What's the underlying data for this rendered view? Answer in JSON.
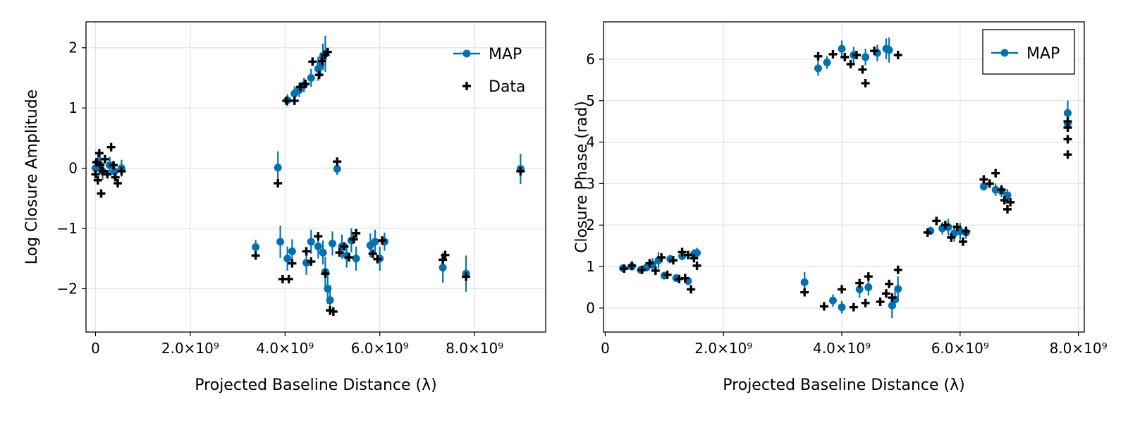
{
  "colors": {
    "map": "#0072b2",
    "data": "#000000",
    "grid": "#e3e3e3"
  },
  "chart_data": [
    {
      "type": "scatter",
      "xlabel": "Projected Baseline Distance (λ)",
      "ylabel": "Log Closure Amplitude",
      "xlim": [
        -200000000,
        9500000000
      ],
      "ylim": [
        -2.72,
        2.43
      ],
      "xticks": [
        0,
        2000000000,
        4000000000,
        6000000000,
        8000000000
      ],
      "xtick_labels": [
        "0",
        "2.0×10⁹",
        "4.0×10⁹",
        "6.0×10⁹",
        "8.0×10⁹"
      ],
      "yticks": [
        -2,
        -1,
        0,
        1,
        2
      ],
      "ytick_labels": [
        "−2",
        "−1",
        "0",
        "1",
        "2"
      ],
      "grid": true,
      "legend": {
        "placement": "top-right",
        "boxed": false,
        "entries": [
          "MAP",
          "Data"
        ]
      },
      "series": [
        {
          "name": "MAP",
          "marker": "circle-errorbar",
          "points": [
            [
              0,
              0,
              0.14
            ],
            [
              50000000,
              0.1,
              0.14
            ],
            [
              100000000,
              0.05,
              0.14
            ],
            [
              150000000,
              -0.05,
              0.14
            ],
            [
              300000000,
              0.05,
              0.14
            ],
            [
              400000000,
              -0.05,
              0.14
            ],
            [
              550000000,
              0,
              0.14
            ],
            [
              3380000000,
              -1.31,
              0.12
            ],
            [
              3850000000,
              0.01,
              0.27
            ],
            [
              3900000000,
              -1.22,
              0.27
            ],
            [
              4050000000,
              1.13,
              0.1
            ],
            [
              4050000000,
              -1.5,
              0.2
            ],
            [
              4150000000,
              -1.38,
              0.2
            ],
            [
              4200000000,
              1.24,
              0.12
            ],
            [
              4300000000,
              1.3,
              0.12
            ],
            [
              4400000000,
              1.38,
              0.12
            ],
            [
              4450000000,
              -1.57,
              0.2
            ],
            [
              4550000000,
              1.5,
              0.15
            ],
            [
              4550000000,
              -1.22,
              0.2
            ],
            [
              4700000000,
              1.65,
              0.2
            ],
            [
              4700000000,
              -1.3,
              0.2
            ],
            [
              4750000000,
              1.72,
              0.2
            ],
            [
              4800000000,
              -1.4,
              0.2
            ],
            [
              4800000000,
              1.85,
              0.22
            ],
            [
              4850000000,
              1.9,
              0.3
            ],
            [
              4850000000,
              -1.72,
              0.25
            ],
            [
              4900000000,
              -2,
              0.25
            ],
            [
              4950000000,
              -2.19,
              0.25
            ],
            [
              5000000000,
              -1.25,
              0.2
            ],
            [
              5100000000,
              -0.01,
              0.1
            ],
            [
              5200000000,
              -1.3,
              0.2
            ],
            [
              5300000000,
              -1.45,
              0.2
            ],
            [
              5400000000,
              -1.2,
              0.2
            ],
            [
              5500000000,
              -1.5,
              0.2
            ],
            [
              5800000000,
              -1.28,
              0.2
            ],
            [
              5900000000,
              -1.22,
              0.2
            ],
            [
              6000000000,
              -1.5,
              0.2
            ],
            [
              6100000000,
              -1.22,
              0.15
            ],
            [
              7330000000,
              -1.65,
              0.25
            ],
            [
              7820000000,
              -1.75,
              0.3
            ],
            [
              8970000000,
              -0.01,
              0.25
            ]
          ]
        },
        {
          "name": "Data",
          "marker": "cross",
          "points": [
            [
              0,
              -0.1
            ],
            [
              20000000,
              0.1
            ],
            [
              50000000,
              -0.2
            ],
            [
              80000000,
              0.25
            ],
            [
              100000000,
              0.05
            ],
            [
              120000000,
              -0.42
            ],
            [
              150000000,
              -0.05
            ],
            [
              200000000,
              0.15
            ],
            [
              250000000,
              -0.1
            ],
            [
              330000000,
              0.35
            ],
            [
              380000000,
              0.05
            ],
            [
              420000000,
              -0.15
            ],
            [
              470000000,
              -0.25
            ],
            [
              550000000,
              -0.05
            ],
            [
              3380000000,
              -1.45
            ],
            [
              3850000000,
              -0.25
            ],
            [
              3950000000,
              -1.84
            ],
            [
              4030000000,
              1.12
            ],
            [
              4080000000,
              -1.84
            ],
            [
              4150000000,
              -1.58
            ],
            [
              4200000000,
              1.12
            ],
            [
              4320000000,
              1.35
            ],
            [
              4430000000,
              1.4
            ],
            [
              4450000000,
              -1.38
            ],
            [
              4550000000,
              -1.55
            ],
            [
              4580000000,
              1.77
            ],
            [
              4700000000,
              -1.13
            ],
            [
              4720000000,
              1.55
            ],
            [
              4780000000,
              1.78
            ],
            [
              4850000000,
              -1.75
            ],
            [
              4850000000,
              1.88
            ],
            [
              4900000000,
              1.93
            ],
            [
              4950000000,
              -2.36
            ],
            [
              5020000000,
              -2.38
            ],
            [
              5100000000,
              0.11
            ],
            [
              5150000000,
              -1.4
            ],
            [
              5250000000,
              -1.3
            ],
            [
              5350000000,
              -1.48
            ],
            [
              5450000000,
              -1.18
            ],
            [
              5500000000,
              -1.08
            ],
            [
              5850000000,
              -1.42
            ],
            [
              5950000000,
              -1.51
            ],
            [
              6050000000,
              -1.2
            ],
            [
              7330000000,
              -1.52
            ],
            [
              7380000000,
              -1.44
            ],
            [
              7820000000,
              -1.8
            ],
            [
              8970000000,
              -0.05
            ]
          ]
        }
      ]
    },
    {
      "type": "scatter",
      "xlabel": "Projected Baseline Distance (λ)",
      "ylabel": "Closure Phase (rad)",
      "xlim": [
        -30000000,
        8100000000
      ],
      "ylim": [
        -0.58,
        6.9
      ],
      "xticks": [
        0,
        2000000000,
        4000000000,
        6000000000,
        8000000000
      ],
      "xtick_labels": [
        "0",
        "2.0×10⁹",
        "4.0×10⁹",
        "6.0×10⁹",
        "8.0×10⁹"
      ],
      "yticks": [
        0,
        1,
        2,
        3,
        4,
        5,
        6
      ],
      "ytick_labels": [
        "0",
        "1",
        "2",
        "3",
        "4",
        "5",
        "6"
      ],
      "grid": true,
      "legend": {
        "placement": "top-right",
        "boxed": true,
        "entries": [
          "MAP"
        ]
      },
      "series": [
        {
          "name": "MAP",
          "marker": "circle-errorbar",
          "points": [
            [
              300000000,
              0.96,
              0.08
            ],
            [
              450000000,
              1.0,
              0.08
            ],
            [
              600000000,
              0.92,
              0.08
            ],
            [
              700000000,
              0.98,
              0.1
            ],
            [
              800000000,
              1.05,
              0.15
            ],
            [
              900000000,
              1.15,
              0.2
            ],
            [
              1000000000,
              0.78,
              0.08
            ],
            [
              1100000000,
              1.18,
              0.1
            ],
            [
              1200000000,
              0.72,
              0.08
            ],
            [
              1300000000,
              1.25,
              0.1
            ],
            [
              1400000000,
              0.65,
              0.1
            ],
            [
              1500000000,
              1.3,
              0.12
            ],
            [
              1550000000,
              1.33,
              0.12
            ],
            [
              3370000000,
              0.62,
              0.25
            ],
            [
              3600000000,
              5.78,
              0.18
            ],
            [
              3750000000,
              5.92,
              0.15
            ],
            [
              3850000000,
              0.18,
              0.15
            ],
            [
              4000000000,
              0.02,
              0.15
            ],
            [
              4000000000,
              6.25,
              0.2
            ],
            [
              4200000000,
              6.1,
              0.2
            ],
            [
              4300000000,
              0.45,
              0.2
            ],
            [
              4400000000,
              6.05,
              0.2
            ],
            [
              4450000000,
              0.5,
              0.2
            ],
            [
              4600000000,
              6.15,
              0.2
            ],
            [
              4750000000,
              6.25,
              0.25
            ],
            [
              4800000000,
              6.22,
              0.3
            ],
            [
              4850000000,
              0.06,
              0.3
            ],
            [
              4900000000,
              0.2,
              0.2
            ],
            [
              4950000000,
              0.46,
              0.3
            ],
            [
              5500000000,
              1.86,
              0.1
            ],
            [
              5700000000,
              1.92,
              0.15
            ],
            [
              5800000000,
              1.95,
              0.2
            ],
            [
              5900000000,
              1.8,
              0.2
            ],
            [
              6000000000,
              1.85,
              0.2
            ],
            [
              6100000000,
              1.82,
              0.15
            ],
            [
              6400000000,
              2.93,
              0.1
            ],
            [
              6600000000,
              2.85,
              0.15
            ],
            [
              6700000000,
              2.82,
              0.15
            ],
            [
              6800000000,
              2.72,
              0.15
            ],
            [
              7820000000,
              4.7,
              0.3
            ],
            [
              7820000000,
              4.45,
              0.2
            ]
          ]
        },
        {
          "name": "Data",
          "marker": "cross",
          "points": [
            [
              320000000,
              0.95
            ],
            [
              450000000,
              1.02
            ],
            [
              620000000,
              0.92
            ],
            [
              750000000,
              1.08
            ],
            [
              850000000,
              0.9
            ],
            [
              950000000,
              1.22
            ],
            [
              1050000000,
              0.8
            ],
            [
              1150000000,
              1.15
            ],
            [
              1250000000,
              0.7
            ],
            [
              1300000000,
              1.35
            ],
            [
              1350000000,
              0.72
            ],
            [
              1400000000,
              1.28
            ],
            [
              1450000000,
              0.45
            ],
            [
              1500000000,
              1.2
            ],
            [
              1550000000,
              1.02
            ],
            [
              3370000000,
              0.38
            ],
            [
              3600000000,
              6.07
            ],
            [
              3700000000,
              0.04
            ],
            [
              3850000000,
              6.12
            ],
            [
              4000000000,
              0.45
            ],
            [
              4050000000,
              6.05
            ],
            [
              4150000000,
              5.88
            ],
            [
              4200000000,
              0.02
            ],
            [
              4250000000,
              6.1
            ],
            [
              4300000000,
              0.6
            ],
            [
              4350000000,
              5.75
            ],
            [
              4400000000,
              0.12
            ],
            [
              4400000000,
              5.42
            ],
            [
              4450000000,
              0.76
            ],
            [
              4550000000,
              6.2
            ],
            [
              4650000000,
              0.15
            ],
            [
              4750000000,
              0.35
            ],
            [
              4800000000,
              0.58
            ],
            [
              4850000000,
              0.25
            ],
            [
              4950000000,
              0.92
            ],
            [
              4950000000,
              6.1
            ],
            [
              5450000000,
              1.82
            ],
            [
              5600000000,
              2.1
            ],
            [
              5750000000,
              2.0
            ],
            [
              5850000000,
              1.7
            ],
            [
              5950000000,
              1.95
            ],
            [
              6050000000,
              1.6
            ],
            [
              6100000000,
              1.85
            ],
            [
              6400000000,
              3.1
            ],
            [
              6500000000,
              3.0
            ],
            [
              6600000000,
              3.25
            ],
            [
              6700000000,
              2.85
            ],
            [
              6750000000,
              2.6
            ],
            [
              6800000000,
              2.38
            ],
            [
              6850000000,
              2.55
            ],
            [
              7820000000,
              4.5
            ],
            [
              7820000000,
              4.35
            ],
            [
              7820000000,
              4.07
            ],
            [
              7820000000,
              3.7
            ]
          ]
        }
      ]
    }
  ]
}
